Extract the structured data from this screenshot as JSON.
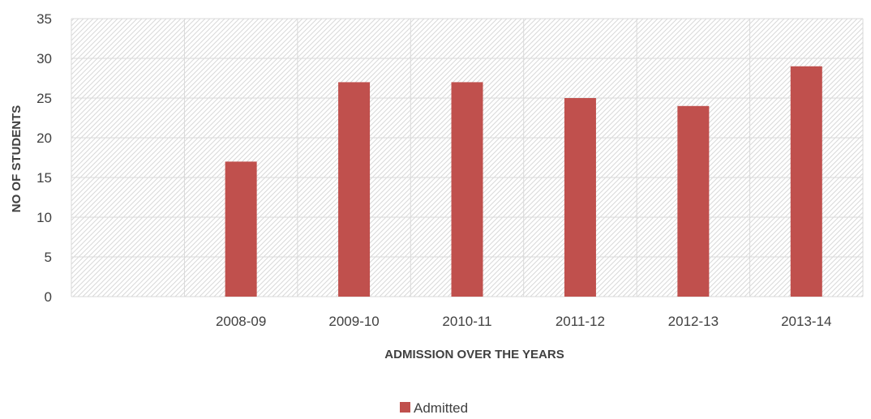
{
  "chart_data": {
    "type": "bar",
    "categories": [
      "",
      "2008-09",
      "2009-10",
      "2010-11",
      "2011-12",
      "2012-13",
      "2013-14"
    ],
    "series": [
      {
        "name": "Admitted",
        "values": [
          null,
          17,
          27,
          27,
          25,
          24,
          29
        ],
        "color": "#c0504d"
      }
    ],
    "xlabel": "ADMISSION OVER THE YEARS",
    "ylabel": "NO OF STUDENTS",
    "ylim": [
      0,
      35
    ],
    "yticks": [
      0,
      5,
      10,
      15,
      20,
      25,
      30,
      35
    ],
    "grid": true,
    "plot_background": "diagonal-hatch",
    "legend_position": "bottom"
  }
}
